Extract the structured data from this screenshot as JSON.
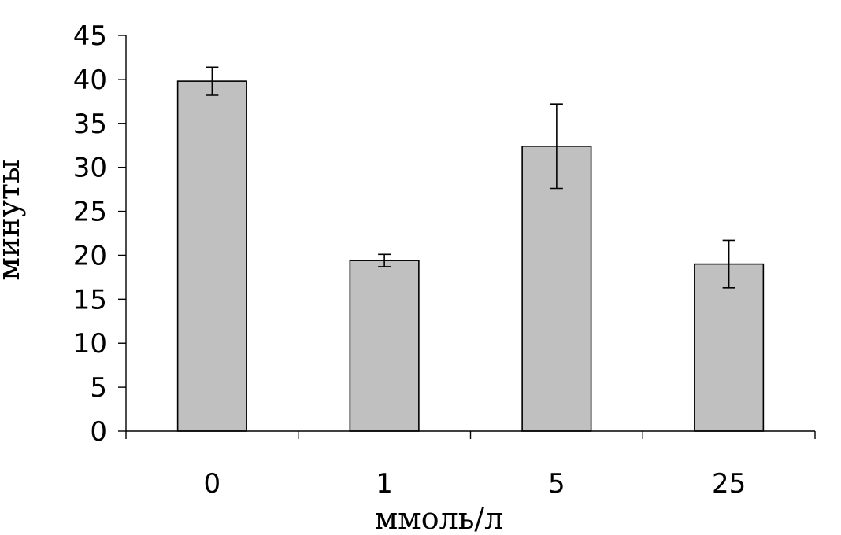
{
  "chart_data": {
    "type": "bar",
    "xlabel": "ммоль/л",
    "ylabel": "минуты",
    "categories": [
      "0",
      "1",
      "5",
      "25"
    ],
    "values": [
      39.8,
      19.4,
      32.4,
      19.0
    ],
    "errors": [
      1.6,
      0.7,
      4.8,
      2.7
    ],
    "ylim": [
      0,
      45
    ],
    "yticks": [
      0,
      5,
      10,
      15,
      20,
      25,
      30,
      35,
      40,
      45
    ],
    "grid": false,
    "bar_color": "#c0c0c0"
  }
}
